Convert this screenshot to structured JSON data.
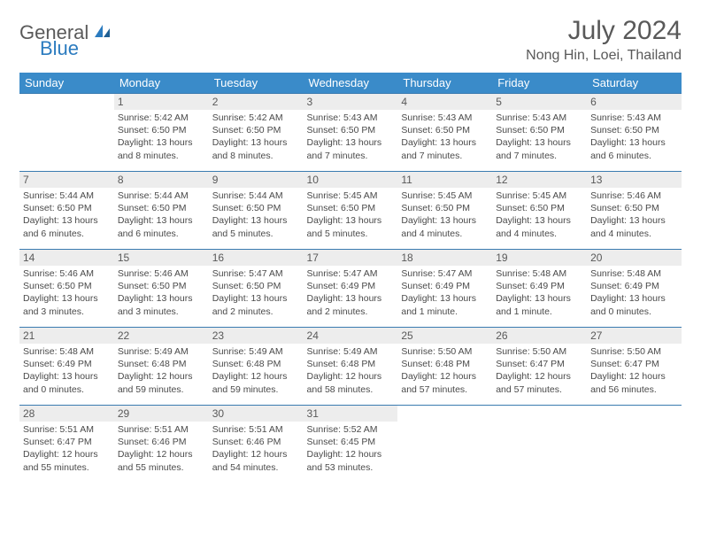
{
  "brand": {
    "part1": "General",
    "part2": "Blue"
  },
  "title": "July 2024",
  "location": "Nong Hin, Loei, Thailand",
  "colors": {
    "header_bg": "#3a8bc9",
    "header_text": "#ffffff",
    "daynum_bg": "#ededed",
    "text": "#595959",
    "rule": "#3a7bb0",
    "logo_gray": "#5a5a5a",
    "logo_blue": "#2b7bbf"
  },
  "day_headers": [
    "Sunday",
    "Monday",
    "Tuesday",
    "Wednesday",
    "Thursday",
    "Friday",
    "Saturday"
  ],
  "weeks": [
    [
      {
        "n": "",
        "sr": "",
        "ss": "",
        "dl": ""
      },
      {
        "n": "1",
        "sr": "5:42 AM",
        "ss": "6:50 PM",
        "dl": "13 hours and 8 minutes."
      },
      {
        "n": "2",
        "sr": "5:42 AM",
        "ss": "6:50 PM",
        "dl": "13 hours and 8 minutes."
      },
      {
        "n": "3",
        "sr": "5:43 AM",
        "ss": "6:50 PM",
        "dl": "13 hours and 7 minutes."
      },
      {
        "n": "4",
        "sr": "5:43 AM",
        "ss": "6:50 PM",
        "dl": "13 hours and 7 minutes."
      },
      {
        "n": "5",
        "sr": "5:43 AM",
        "ss": "6:50 PM",
        "dl": "13 hours and 7 minutes."
      },
      {
        "n": "6",
        "sr": "5:43 AM",
        "ss": "6:50 PM",
        "dl": "13 hours and 6 minutes."
      }
    ],
    [
      {
        "n": "7",
        "sr": "5:44 AM",
        "ss": "6:50 PM",
        "dl": "13 hours and 6 minutes."
      },
      {
        "n": "8",
        "sr": "5:44 AM",
        "ss": "6:50 PM",
        "dl": "13 hours and 6 minutes."
      },
      {
        "n": "9",
        "sr": "5:44 AM",
        "ss": "6:50 PM",
        "dl": "13 hours and 5 minutes."
      },
      {
        "n": "10",
        "sr": "5:45 AM",
        "ss": "6:50 PM",
        "dl": "13 hours and 5 minutes."
      },
      {
        "n": "11",
        "sr": "5:45 AM",
        "ss": "6:50 PM",
        "dl": "13 hours and 4 minutes."
      },
      {
        "n": "12",
        "sr": "5:45 AM",
        "ss": "6:50 PM",
        "dl": "13 hours and 4 minutes."
      },
      {
        "n": "13",
        "sr": "5:46 AM",
        "ss": "6:50 PM",
        "dl": "13 hours and 4 minutes."
      }
    ],
    [
      {
        "n": "14",
        "sr": "5:46 AM",
        "ss": "6:50 PM",
        "dl": "13 hours and 3 minutes."
      },
      {
        "n": "15",
        "sr": "5:46 AM",
        "ss": "6:50 PM",
        "dl": "13 hours and 3 minutes."
      },
      {
        "n": "16",
        "sr": "5:47 AM",
        "ss": "6:50 PM",
        "dl": "13 hours and 2 minutes."
      },
      {
        "n": "17",
        "sr": "5:47 AM",
        "ss": "6:49 PM",
        "dl": "13 hours and 2 minutes."
      },
      {
        "n": "18",
        "sr": "5:47 AM",
        "ss": "6:49 PM",
        "dl": "13 hours and 1 minute."
      },
      {
        "n": "19",
        "sr": "5:48 AM",
        "ss": "6:49 PM",
        "dl": "13 hours and 1 minute."
      },
      {
        "n": "20",
        "sr": "5:48 AM",
        "ss": "6:49 PM",
        "dl": "13 hours and 0 minutes."
      }
    ],
    [
      {
        "n": "21",
        "sr": "5:48 AM",
        "ss": "6:49 PM",
        "dl": "13 hours and 0 minutes."
      },
      {
        "n": "22",
        "sr": "5:49 AM",
        "ss": "6:48 PM",
        "dl": "12 hours and 59 minutes."
      },
      {
        "n": "23",
        "sr": "5:49 AM",
        "ss": "6:48 PM",
        "dl": "12 hours and 59 minutes."
      },
      {
        "n": "24",
        "sr": "5:49 AM",
        "ss": "6:48 PM",
        "dl": "12 hours and 58 minutes."
      },
      {
        "n": "25",
        "sr": "5:50 AM",
        "ss": "6:48 PM",
        "dl": "12 hours and 57 minutes."
      },
      {
        "n": "26",
        "sr": "5:50 AM",
        "ss": "6:47 PM",
        "dl": "12 hours and 57 minutes."
      },
      {
        "n": "27",
        "sr": "5:50 AM",
        "ss": "6:47 PM",
        "dl": "12 hours and 56 minutes."
      }
    ],
    [
      {
        "n": "28",
        "sr": "5:51 AM",
        "ss": "6:47 PM",
        "dl": "12 hours and 55 minutes."
      },
      {
        "n": "29",
        "sr": "5:51 AM",
        "ss": "6:46 PM",
        "dl": "12 hours and 55 minutes."
      },
      {
        "n": "30",
        "sr": "5:51 AM",
        "ss": "6:46 PM",
        "dl": "12 hours and 54 minutes."
      },
      {
        "n": "31",
        "sr": "5:52 AM",
        "ss": "6:45 PM",
        "dl": "12 hours and 53 minutes."
      },
      {
        "n": "",
        "sr": "",
        "ss": "",
        "dl": ""
      },
      {
        "n": "",
        "sr": "",
        "ss": "",
        "dl": ""
      },
      {
        "n": "",
        "sr": "",
        "ss": "",
        "dl": ""
      }
    ]
  ],
  "labels": {
    "sunrise": "Sunrise:",
    "sunset": "Sunset:",
    "daylight": "Daylight:"
  }
}
